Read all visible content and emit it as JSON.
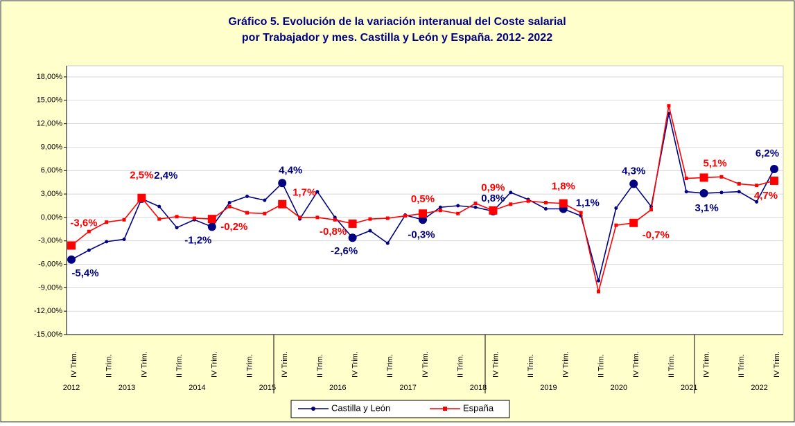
{
  "chart_data": {
    "type": "line",
    "title": [
      "Gráfico 5. Evolución de la variación interanual  del Coste salarial",
      "por Trabajador y mes. Castilla y León y España. 2012- 2022"
    ],
    "categories": [
      "IV Trim.",
      null,
      "II Trim.",
      null,
      "IV Trim.",
      null,
      "II Trim.",
      null,
      "IV Trim.",
      null,
      "II Trim.",
      null,
      "IV Trim.",
      null,
      "II Trim.",
      null,
      "IV Trim.",
      null,
      "II Trim.",
      null,
      "IV Trim.",
      null,
      "II Trim.",
      null,
      "IV Trim.",
      null,
      "II Trim.",
      null,
      "IV Trim.",
      null,
      "II Trim.",
      null,
      "IV Trim.",
      null,
      "II Trim.",
      null,
      "IV Trim.",
      null,
      "II Trim.",
      null,
      "IV Trim."
    ],
    "years": [
      "2012",
      "2013",
      "2014",
      "2015",
      "2016",
      "2017",
      "2018",
      "2019",
      "2020",
      "2021",
      "2022"
    ],
    "series": [
      {
        "name": "Castilla y León",
        "color": "#000080",
        "values": [
          -5.4,
          -4.2,
          -3.1,
          -2.8,
          2.4,
          1.4,
          -1.3,
          -0.3,
          -1.2,
          1.9,
          2.7,
          2.2,
          4.4,
          -0.2,
          3.3,
          0.0,
          -2.6,
          -1.7,
          -3.3,
          0.3,
          -0.3,
          1.3,
          1.5,
          1.3,
          0.8,
          3.2,
          2.3,
          1.1,
          1.1,
          0.2,
          -8.1,
          1.2,
          4.3,
          1.4,
          13.3,
          3.3,
          3.1,
          3.2,
          3.3,
          2.0,
          6.2
        ],
        "value_labels": [
          "-5,4%",
          null,
          null,
          null,
          "2,4%",
          null,
          null,
          null,
          "-1,2%",
          null,
          null,
          null,
          "4,4%",
          null,
          null,
          null,
          "-2,6%",
          null,
          null,
          null,
          "-0,3%",
          null,
          null,
          null,
          "0,8%",
          null,
          null,
          null,
          "1,1%",
          null,
          null,
          null,
          "4,3%",
          null,
          null,
          null,
          "3,1%",
          null,
          null,
          null,
          "6,2%"
        ]
      },
      {
        "name": "España",
        "color": "#ff0000",
        "values": [
          -3.6,
          -1.8,
          -0.6,
          -0.3,
          2.5,
          -0.2,
          0.1,
          -0.1,
          -0.2,
          1.4,
          0.6,
          0.5,
          1.7,
          0.0,
          0.0,
          -0.3,
          -0.8,
          -0.2,
          -0.1,
          0.2,
          0.5,
          0.9,
          0.5,
          1.8,
          0.9,
          1.7,
          2.1,
          1.9,
          1.8,
          0.6,
          -9.5,
          -1.0,
          -0.7,
          1.0,
          14.3,
          5.0,
          5.1,
          5.2,
          4.3,
          4.1,
          4.7
        ],
        "value_labels": [
          "-3,6%",
          null,
          null,
          null,
          "2,5%",
          null,
          null,
          null,
          "-0,2%",
          null,
          null,
          null,
          "1,7%",
          null,
          null,
          null,
          "-0,8%",
          null,
          null,
          null,
          "0,5%",
          null,
          null,
          null,
          "0,9%",
          null,
          null,
          null,
          "1,8%",
          null,
          null,
          null,
          "-0,7%",
          null,
          null,
          null,
          "5,1%",
          null,
          null,
          null,
          "4,7%"
        ]
      }
    ],
    "ylim": [
      -15,
      18
    ],
    "yticks": [
      {
        "value": -15,
        "label": "-15,00%"
      },
      {
        "value": -12,
        "label": "-12,00%"
      },
      {
        "value": -9,
        "label": "-9,00%"
      },
      {
        "value": -6,
        "label": "-6,00%"
      },
      {
        "value": -3,
        "label": "-3,00%"
      },
      {
        "value": 0,
        "label": "0,00%"
      },
      {
        "value": 3,
        "label": "3,00%"
      },
      {
        "value": 6,
        "label": "6,00%"
      },
      {
        "value": 9,
        "label": "9,00%"
      },
      {
        "value": 12,
        "label": "12,00%"
      },
      {
        "value": 15,
        "label": "15,00%"
      },
      {
        "value": 18,
        "label": "18,00%"
      }
    ],
    "grid": true,
    "legend": "bottom"
  }
}
